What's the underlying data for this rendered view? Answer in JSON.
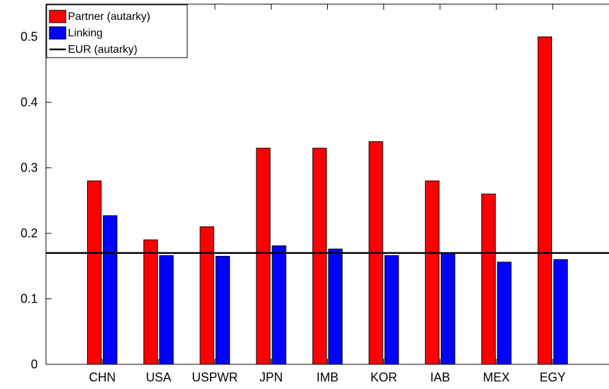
{
  "chart_data": {
    "type": "bar",
    "categories": [
      "CHN",
      "USA",
      "USPWR",
      "JPN",
      "IMB",
      "KOR",
      "IAB",
      "MEX",
      "EGY"
    ],
    "series": [
      {
        "name": "Partner (autarky)",
        "color": "#ff0000",
        "values": [
          0.28,
          0.19,
          0.21,
          0.33,
          0.33,
          0.34,
          0.28,
          0.26,
          0.5
        ]
      },
      {
        "name": "Linking",
        "color": "#0000ff",
        "values": [
          0.227,
          0.166,
          0.165,
          0.181,
          0.176,
          0.166,
          0.17,
          0.156,
          0.16
        ]
      }
    ],
    "reference_line": {
      "name": "EUR (autarky)",
      "value": 0.17,
      "color": "#000000"
    },
    "ylim": [
      0,
      0.55
    ],
    "yticks": [
      "0",
      "0.1",
      "0.2",
      "0.3",
      "0.4",
      "0.5"
    ],
    "ytick_values": [
      0,
      0.1,
      0.2,
      0.3,
      0.4,
      0.5
    ],
    "grid": false,
    "legend_position": "top-left"
  }
}
